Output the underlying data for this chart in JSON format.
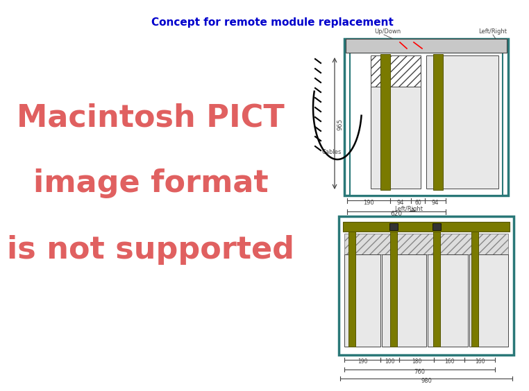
{
  "title": "Concept for remote module replacement",
  "title_color": "#0000CC",
  "title_fontsize": 11,
  "pict_text_lines": [
    "Macintosh PICT",
    "image format",
    "is not supported"
  ],
  "pict_text_color": "#E06060",
  "pict_text_fontsize": 32,
  "bg_color": "#FFFFFF",
  "teal": "#2A7878",
  "olive": "#7A7A00",
  "dim_color": "#444444",
  "label_up_down": "Up/Down",
  "label_left_right_1": "Left/Right",
  "label_cables": "Cables",
  "label_965": "965",
  "label_190_1": "190",
  "label_94a": "94",
  "label_60": "60",
  "label_94b": "94",
  "label_620": "620",
  "label_lr2": "Left/Right",
  "label_190b": "190",
  "label_100": "100",
  "label_180": "180",
  "label_160a": "160",
  "label_160b": "160",
  "label_760": "760",
  "label_980": "980"
}
